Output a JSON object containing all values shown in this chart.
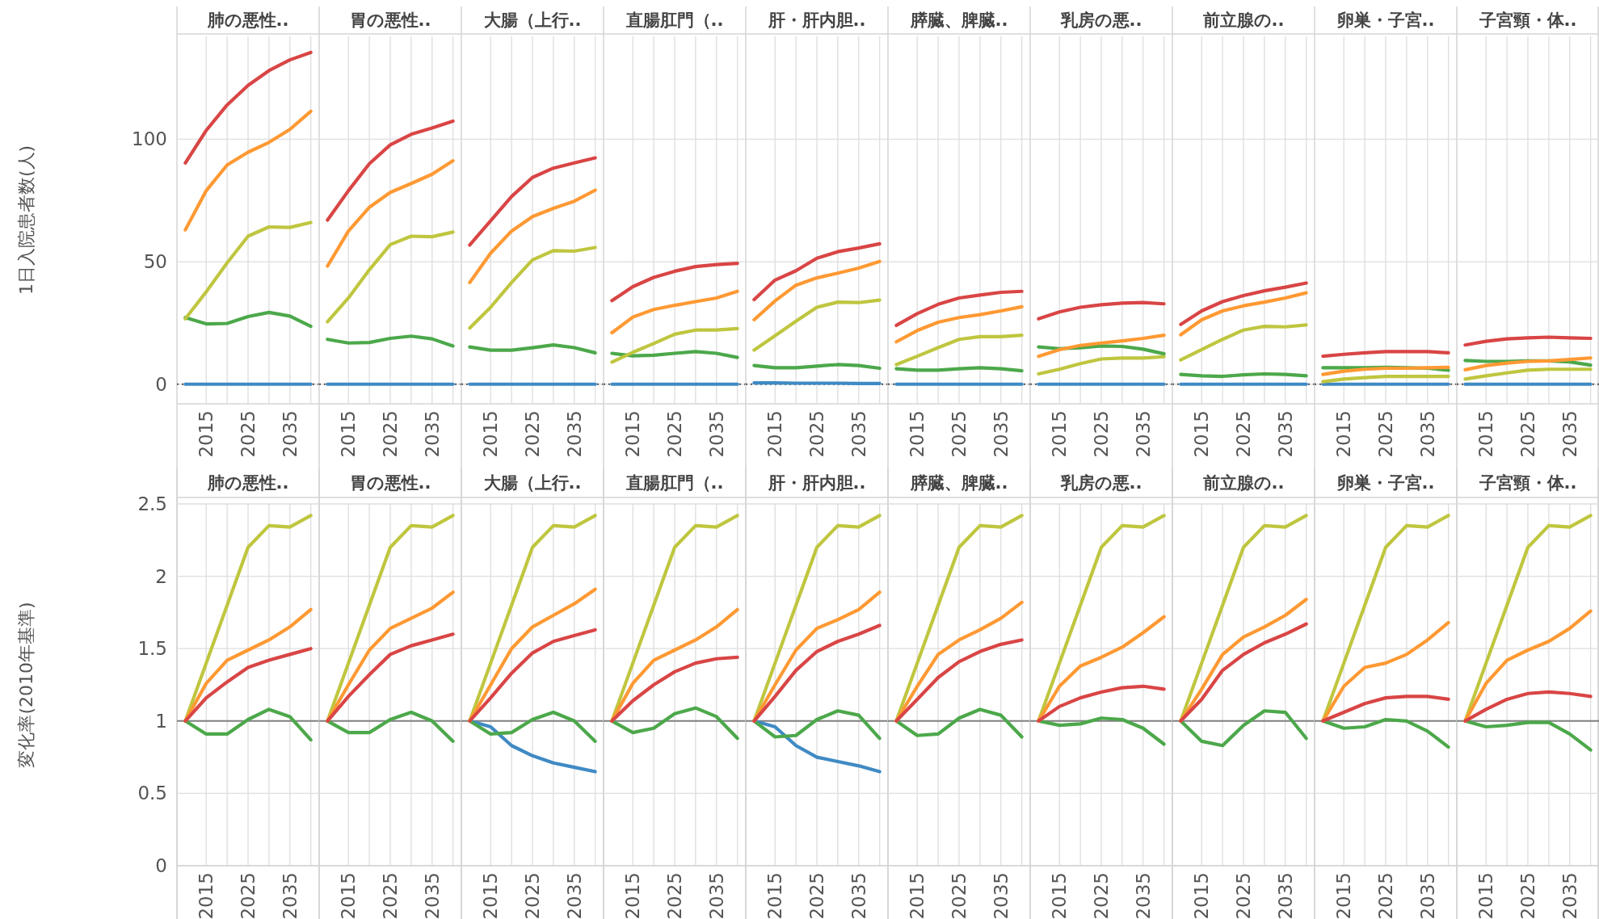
{
  "chart_data": [
    {
      "type": "line",
      "title": "肺の悪性..",
      "ylabel": "1日入院患者数(人)",
      "x": [
        2010,
        2015,
        2020,
        2025,
        2030,
        2035,
        2040
      ],
      "xlim": [
        2008,
        2042
      ],
      "xticks": [
        {
          "value": 2015,
          "label": "2015"
        },
        {
          "value": 2020,
          "label": null
        },
        {
          "value": 2025,
          "label": "2025"
        },
        {
          "value": 2030,
          "label": null
        },
        {
          "value": 2035,
          "label": "2035"
        },
        {
          "value": 2040,
          "label": null
        }
      ],
      "ylim": [
        -8,
        142
      ],
      "yticks": [
        0,
        50,
        100
      ],
      "grid": true,
      "ref_lines": [
        {
          "axis": "y",
          "value": 0,
          "color": "#555555",
          "line_style": "dotted"
        }
      ],
      "series": [
        {
          "color": "#3f8ac4",
          "values": [
            0,
            0,
            0,
            0,
            0,
            0,
            0
          ]
        },
        {
          "color": "#4ca84a",
          "values": [
            27.2,
            24.6,
            24.8,
            27.6,
            29.3,
            27.8,
            23.6
          ]
        },
        {
          "color": "#bfc63f",
          "values": [
            26.7,
            37.7,
            49.5,
            60.4,
            64.2,
            64,
            66
          ]
        },
        {
          "color": "#ff9933",
          "values": [
            63,
            79,
            89.5,
            94.7,
            98.7,
            104,
            111.4
          ]
        },
        {
          "color": "#d94545",
          "values": [
            90.3,
            103.6,
            114,
            122,
            128,
            132.4,
            135.4
          ]
        }
      ]
    },
    {
      "type": "line",
      "title": "胃の悪性..",
      "x": [
        2010,
        2015,
        2020,
        2025,
        2030,
        2035,
        2040
      ],
      "xlim": [
        2008,
        2042
      ],
      "xticks": [
        {
          "value": 2015,
          "label": "2015"
        },
        {
          "value": 2020,
          "label": null
        },
        {
          "value": 2025,
          "label": "2025"
        },
        {
          "value": 2030,
          "label": null
        },
        {
          "value": 2035,
          "label": "2035"
        },
        {
          "value": 2040,
          "label": null
        }
      ],
      "ylim": [
        -8,
        142
      ],
      "yticks": [
        0,
        50,
        100
      ],
      "tick_labels": "x",
      "grid": true,
      "ref_lines": [
        {
          "axis": "y",
          "value": 0,
          "color": "#555555",
          "line_style": "dotted"
        }
      ],
      "series": [
        {
          "color": "#3f8ac4",
          "values": [
            0,
            0,
            0,
            0,
            0,
            0,
            0
          ]
        },
        {
          "color": "#4ca84a",
          "values": [
            18.3,
            16.8,
            17,
            18.7,
            19.6,
            18.5,
            15.6
          ]
        },
        {
          "color": "#bfc63f",
          "values": [
            25.5,
            35.2,
            46.7,
            57,
            60.4,
            60.2,
            62.1
          ]
        },
        {
          "color": "#ff9933",
          "values": [
            48.2,
            62.5,
            72.2,
            78.3,
            81.9,
            85.7,
            91.2
          ]
        },
        {
          "color": "#d94545",
          "values": [
            67,
            79,
            90,
            97.7,
            102,
            104.6,
            107.4
          ]
        }
      ]
    },
    {
      "type": "line",
      "title": "大腸（上行..",
      "x": [
        2010,
        2015,
        2020,
        2025,
        2030,
        2035,
        2040
      ],
      "xlim": [
        2008,
        2042
      ],
      "xticks": [
        {
          "value": 2015,
          "label": "2015"
        },
        {
          "value": 2020,
          "label": null
        },
        {
          "value": 2025,
          "label": "2025"
        },
        {
          "value": 2030,
          "label": null
        },
        {
          "value": 2035,
          "label": "2035"
        },
        {
          "value": 2040,
          "label": null
        }
      ],
      "ylim": [
        -8,
        142
      ],
      "yticks": [
        0,
        50,
        100
      ],
      "tick_labels": "x",
      "grid": true,
      "ref_lines": [
        {
          "axis": "y",
          "value": 0,
          "color": "#555555",
          "line_style": "dotted"
        }
      ],
      "series": [
        {
          "color": "#3f8ac4",
          "values": [
            0,
            0,
            0,
            0,
            0,
            0,
            0
          ]
        },
        {
          "color": "#4ca84a",
          "values": [
            15.2,
            13.9,
            13.9,
            14.9,
            16,
            14.9,
            12.8
          ]
        },
        {
          "color": "#bfc63f",
          "values": [
            22.9,
            31.4,
            41.5,
            50.7,
            54.5,
            54.3,
            55.8
          ]
        },
        {
          "color": "#ff9933",
          "values": [
            41.5,
            53.5,
            62.5,
            68.4,
            71.8,
            74.7,
            79.2
          ]
        },
        {
          "color": "#d94545",
          "values": [
            56.8,
            66.7,
            76.6,
            84.4,
            88.2,
            90.3,
            92.4
          ]
        }
      ]
    },
    {
      "type": "line",
      "title": "直腸肛門（..",
      "x": [
        2010,
        2015,
        2020,
        2025,
        2030,
        2035,
        2040
      ],
      "xlim": [
        2008,
        2042
      ],
      "xticks": [
        {
          "value": 2015,
          "label": "2015"
        },
        {
          "value": 2020,
          "label": null
        },
        {
          "value": 2025,
          "label": "2025"
        },
        {
          "value": 2030,
          "label": null
        },
        {
          "value": 2035,
          "label": "2035"
        },
        {
          "value": 2040,
          "label": null
        }
      ],
      "ylim": [
        -8,
        142
      ],
      "yticks": [
        0,
        50,
        100
      ],
      "tick_labels": "x",
      "grid": true,
      "ref_lines": [
        {
          "axis": "y",
          "value": 0,
          "color": "#555555",
          "line_style": "dotted"
        }
      ],
      "series": [
        {
          "color": "#3f8ac4",
          "values": [
            0,
            0,
            0,
            0,
            0,
            0,
            0
          ]
        },
        {
          "color": "#4ca84a",
          "values": [
            12.6,
            11.6,
            11.8,
            12.6,
            13.3,
            12.6,
            10.9
          ]
        },
        {
          "color": "#bfc63f",
          "values": [
            9,
            13,
            16.6,
            20.4,
            22.1,
            22.1,
            22.7
          ]
        },
        {
          "color": "#ff9933",
          "values": [
            21,
            27.4,
            30.5,
            32.2,
            33.7,
            35.2,
            37.9
          ]
        },
        {
          "color": "#d94545",
          "values": [
            34.1,
            39.8,
            43.6,
            46.1,
            48,
            48.8,
            49.3
          ]
        }
      ]
    },
    {
      "type": "line",
      "title": "肝・肝内胆..",
      "x": [
        2010,
        2015,
        2020,
        2025,
        2030,
        2035,
        2040
      ],
      "xlim": [
        2008,
        2042
      ],
      "xticks": [
        {
          "value": 2015,
          "label": "2015"
        },
        {
          "value": 2020,
          "label": null
        },
        {
          "value": 2025,
          "label": "2025"
        },
        {
          "value": 2030,
          "label": null
        },
        {
          "value": 2035,
          "label": "2035"
        },
        {
          "value": 2040,
          "label": null
        }
      ],
      "ylim": [
        -8,
        142
      ],
      "yticks": [
        0,
        50,
        100
      ],
      "tick_labels": "x",
      "grid": true,
      "ref_lines": [
        {
          "axis": "y",
          "value": 0,
          "color": "#555555",
          "line_style": "dotted"
        }
      ],
      "series": [
        {
          "color": "#3f8ac4",
          "values": [
            0.5,
            0.5,
            0.4,
            0.4,
            0.4,
            0.3,
            0.3
          ]
        },
        {
          "color": "#4ca84a",
          "values": [
            7.6,
            6.7,
            6.7,
            7.4,
            8,
            7.6,
            6.5
          ]
        },
        {
          "color": "#bfc63f",
          "values": [
            13.9,
            19.8,
            25.7,
            31.4,
            33.5,
            33.3,
            34.3
          ]
        },
        {
          "color": "#ff9933",
          "values": [
            26.3,
            34,
            40.4,
            43.4,
            45.3,
            47.4,
            50.1
          ]
        },
        {
          "color": "#d94545",
          "values": [
            34.5,
            42.5,
            46.3,
            51.4,
            54.1,
            55.6,
            57.3
          ]
        }
      ]
    },
    {
      "type": "line",
      "title": "膵臓、脾臓..",
      "x": [
        2010,
        2015,
        2020,
        2025,
        2030,
        2035,
        2040
      ],
      "xlim": [
        2008,
        2042
      ],
      "xticks": [
        {
          "value": 2015,
          "label": "2015"
        },
        {
          "value": 2020,
          "label": null
        },
        {
          "value": 2025,
          "label": "2025"
        },
        {
          "value": 2030,
          "label": null
        },
        {
          "value": 2035,
          "label": "2035"
        },
        {
          "value": 2040,
          "label": null
        }
      ],
      "ylim": [
        -8,
        142
      ],
      "yticks": [
        0,
        50,
        100
      ],
      "tick_labels": "x",
      "grid": true,
      "ref_lines": [
        {
          "axis": "y",
          "value": 0,
          "color": "#555555",
          "line_style": "dotted"
        }
      ],
      "series": [
        {
          "color": "#3f8ac4",
          "values": [
            0,
            0,
            0,
            0,
            0,
            0,
            0
          ]
        },
        {
          "color": "#4ca84a",
          "values": [
            6.3,
            5.7,
            5.7,
            6.3,
            6.7,
            6.3,
            5.5
          ]
        },
        {
          "color": "#bfc63f",
          "values": [
            8,
            11.4,
            14.9,
            18.3,
            19.4,
            19.4,
            20
          ]
        },
        {
          "color": "#ff9933",
          "values": [
            17.3,
            21.9,
            25.3,
            27.2,
            28.4,
            29.9,
            31.6
          ]
        },
        {
          "color": "#d94545",
          "values": [
            24,
            28.8,
            32.6,
            35.2,
            36.4,
            37.5,
            37.9
          ]
        }
      ]
    },
    {
      "type": "line",
      "title": "乳房の悪..",
      "x": [
        2010,
        2015,
        2020,
        2025,
        2030,
        2035,
        2040
      ],
      "xlim": [
        2008,
        2042
      ],
      "xticks": [
        {
          "value": 2015,
          "label": "2015"
        },
        {
          "value": 2020,
          "label": null
        },
        {
          "value": 2025,
          "label": "2025"
        },
        {
          "value": 2030,
          "label": null
        },
        {
          "value": 2035,
          "label": "2035"
        },
        {
          "value": 2040,
          "label": null
        }
      ],
      "ylim": [
        -8,
        142
      ],
      "yticks": [
        0,
        50,
        100
      ],
      "tick_labels": "x",
      "grid": true,
      "ref_lines": [
        {
          "axis": "y",
          "value": 0,
          "color": "#555555",
          "line_style": "dotted"
        }
      ],
      "series": [
        {
          "color": "#3f8ac4",
          "values": [
            0,
            0,
            0,
            0,
            0,
            0,
            0
          ]
        },
        {
          "color": "#4ca84a",
          "values": [
            15.2,
            14.5,
            14.9,
            15.6,
            15.4,
            14.3,
            12.4
          ]
        },
        {
          "color": "#bfc63f",
          "values": [
            4.2,
            6.1,
            8.4,
            10.3,
            10.7,
            10.7,
            11.2
          ]
        },
        {
          "color": "#ff9933",
          "values": [
            11.4,
            14.1,
            15.8,
            16.8,
            17.7,
            18.7,
            20
          ]
        },
        {
          "color": "#d94545",
          "values": [
            26.7,
            29.5,
            31.4,
            32.4,
            33.1,
            33.3,
            32.8
          ]
        }
      ]
    },
    {
      "type": "line",
      "title": "前立腺の..",
      "x": [
        2010,
        2015,
        2020,
        2025,
        2030,
        2035,
        2040
      ],
      "xlim": [
        2008,
        2042
      ],
      "xticks": [
        {
          "value": 2015,
          "label": "2015"
        },
        {
          "value": 2020,
          "label": null
        },
        {
          "value": 2025,
          "label": "2025"
        },
        {
          "value": 2030,
          "label": null
        },
        {
          "value": 2035,
          "label": "2035"
        },
        {
          "value": 2040,
          "label": null
        }
      ],
      "ylim": [
        -8,
        142
      ],
      "yticks": [
        0,
        50,
        100
      ],
      "tick_labels": "x",
      "grid": true,
      "ref_lines": [
        {
          "axis": "y",
          "value": 0,
          "color": "#555555",
          "line_style": "dotted"
        }
      ],
      "series": [
        {
          "color": "#3f8ac4",
          "values": [
            0,
            0,
            0,
            0,
            0,
            0,
            0
          ]
        },
        {
          "color": "#4ca84a",
          "values": [
            4,
            3.4,
            3.2,
            3.8,
            4.2,
            4,
            3.4
          ]
        },
        {
          "color": "#bfc63f",
          "values": [
            9.9,
            14.1,
            18.3,
            22.1,
            23.6,
            23.4,
            24.2
          ]
        },
        {
          "color": "#ff9933",
          "values": [
            20.2,
            26.3,
            29.9,
            32,
            33.5,
            35.2,
            37.3
          ]
        },
        {
          "color": "#d94545",
          "values": [
            24.4,
            29.9,
            33.7,
            36.2,
            38.1,
            39.6,
            41.3
          ]
        }
      ]
    },
    {
      "type": "line",
      "title": "卵巣・子宮..",
      "x": [
        2010,
        2015,
        2020,
        2025,
        2030,
        2035,
        2040
      ],
      "xlim": [
        2008,
        2042
      ],
      "xticks": [
        {
          "value": 2015,
          "label": "2015"
        },
        {
          "value": 2020,
          "label": null
        },
        {
          "value": 2025,
          "label": "2025"
        },
        {
          "value": 2030,
          "label": null
        },
        {
          "value": 2035,
          "label": "2035"
        },
        {
          "value": 2040,
          "label": null
        }
      ],
      "ylim": [
        -8,
        142
      ],
      "yticks": [
        0,
        50,
        100
      ],
      "tick_labels": "x",
      "grid": true,
      "ref_lines": [
        {
          "axis": "y",
          "value": 0,
          "color": "#555555",
          "line_style": "dotted"
        }
      ],
      "series": [
        {
          "color": "#3f8ac4",
          "values": [
            0,
            0,
            0,
            0,
            0,
            0,
            0
          ]
        },
        {
          "color": "#4ca84a",
          "values": [
            6.7,
            6.7,
            6.7,
            6.9,
            6.7,
            6.5,
            5.7
          ]
        },
        {
          "color": "#bfc63f",
          "values": [
            1,
            2.1,
            2.7,
            3.2,
            3.2,
            3.2,
            3.2
          ]
        },
        {
          "color": "#ff9933",
          "values": [
            4,
            5.3,
            6.1,
            6.5,
            6.5,
            6.7,
            6.9
          ]
        },
        {
          "color": "#d94545",
          "values": [
            11.4,
            12.2,
            12.8,
            13.3,
            13.3,
            13.3,
            12.8
          ]
        }
      ]
    },
    {
      "type": "line",
      "title": "子宮頸・体..",
      "x": [
        2010,
        2015,
        2020,
        2025,
        2030,
        2035,
        2040
      ],
      "xlim": [
        2008,
        2042
      ],
      "xticks": [
        {
          "value": 2015,
          "label": "2015"
        },
        {
          "value": 2020,
          "label": null
        },
        {
          "value": 2025,
          "label": "2025"
        },
        {
          "value": 2030,
          "label": null
        },
        {
          "value": 2035,
          "label": "2035"
        },
        {
          "value": 2040,
          "label": null
        }
      ],
      "ylim": [
        -8,
        142
      ],
      "yticks": [
        0,
        50,
        100
      ],
      "tick_labels": "x",
      "grid": true,
      "ref_lines": [
        {
          "axis": "y",
          "value": 0,
          "color": "#555555",
          "line_style": "dotted"
        }
      ],
      "series": [
        {
          "color": "#3f8ac4",
          "values": [
            0,
            0,
            0,
            0,
            0,
            0,
            0
          ]
        },
        {
          "color": "#4ca84a",
          "values": [
            9.7,
            9.3,
            9.3,
            9.5,
            9.5,
            9.1,
            7.8
          ]
        },
        {
          "color": "#bfc63f",
          "values": [
            2.1,
            3.4,
            4.6,
            5.7,
            6.1,
            6.1,
            6.1
          ]
        },
        {
          "color": "#ff9933",
          "values": [
            5.9,
            7.6,
            8.6,
            9.3,
            9.5,
            10.1,
            10.7
          ]
        },
        {
          "color": "#d94545",
          "values": [
            16,
            17.5,
            18.5,
            18.9,
            19.2,
            18.9,
            18.7
          ]
        }
      ]
    },
    {
      "type": "line",
      "title": "肺の悪性..",
      "ylabel": "変化率(2010年基準)",
      "x": [
        2010,
        2015,
        2020,
        2025,
        2030,
        2035,
        2040
      ],
      "xlim": [
        2008,
        2042
      ],
      "xticks": [
        {
          "value": 2015,
          "label": "2015"
        },
        {
          "value": 2020,
          "label": null
        },
        {
          "value": 2025,
          "label": "2025"
        },
        {
          "value": 2030,
          "label": null
        },
        {
          "value": 2035,
          "label": "2035"
        },
        {
          "value": 2040,
          "label": null
        }
      ],
      "ylim": [
        0,
        2.5
      ],
      "yticks": [
        0,
        0.5,
        1,
        1.5,
        2,
        2.5
      ],
      "grid": true,
      "ref_lines": [
        {
          "axis": "y",
          "value": 1,
          "color": "#808080",
          "line_style": "solid"
        }
      ],
      "series": [
        {
          "color": "#4ca84a",
          "values": [
            1,
            0.91,
            0.91,
            1.01,
            1.08,
            1.03,
            0.87
          ]
        },
        {
          "color": "#bfc63f",
          "values": [
            1,
            1.4,
            1.8,
            2.2,
            2.35,
            2.34,
            2.42
          ]
        },
        {
          "color": "#ff9933",
          "values": [
            1,
            1.26,
            1.42,
            1.49,
            1.56,
            1.65,
            1.77
          ]
        },
        {
          "color": "#d94545",
          "values": [
            1,
            1.16,
            1.27,
            1.37,
            1.42,
            1.46,
            1.5
          ]
        }
      ]
    },
    {
      "type": "line",
      "title": "胃の悪性..",
      "x": [
        2010,
        2015,
        2020,
        2025,
        2030,
        2035,
        2040
      ],
      "xlim": [
        2008,
        2042
      ],
      "xticks": [
        {
          "value": 2015,
          "label": "2015"
        },
        {
          "value": 2020,
          "label": null
        },
        {
          "value": 2025,
          "label": "2025"
        },
        {
          "value": 2030,
          "label": null
        },
        {
          "value": 2035,
          "label": "2035"
        },
        {
          "value": 2040,
          "label": null
        }
      ],
      "ylim": [
        0,
        2.5
      ],
      "yticks": [
        0,
        0.5,
        1,
        1.5,
        2,
        2.5
      ],
      "tick_labels": "x",
      "grid": true,
      "ref_lines": [
        {
          "axis": "y",
          "value": 1,
          "color": "#808080",
          "line_style": "solid"
        }
      ],
      "series": [
        {
          "color": "#4ca84a",
          "values": [
            1,
            0.92,
            0.92,
            1.01,
            1.06,
            1.0,
            0.86
          ]
        },
        {
          "color": "#bfc63f",
          "values": [
            1,
            1.4,
            1.8,
            2.2,
            2.35,
            2.34,
            2.42
          ]
        },
        {
          "color": "#ff9933",
          "values": [
            1,
            1.25,
            1.49,
            1.64,
            1.71,
            1.78,
            1.89
          ]
        },
        {
          "color": "#d94545",
          "values": [
            1,
            1.17,
            1.32,
            1.46,
            1.52,
            1.56,
            1.6
          ]
        }
      ]
    },
    {
      "type": "line",
      "title": "大腸（上行..",
      "x": [
        2010,
        2015,
        2020,
        2025,
        2030,
        2035,
        2040
      ],
      "xlim": [
        2008,
        2042
      ],
      "xticks": [
        {
          "value": 2015,
          "label": "2015"
        },
        {
          "value": 2020,
          "label": null
        },
        {
          "value": 2025,
          "label": "2025"
        },
        {
          "value": 2030,
          "label": null
        },
        {
          "value": 2035,
          "label": "2035"
        },
        {
          "value": 2040,
          "label": null
        }
      ],
      "ylim": [
        0,
        2.5
      ],
      "yticks": [
        0,
        0.5,
        1,
        1.5,
        2,
        2.5
      ],
      "tick_labels": "x",
      "grid": true,
      "ref_lines": [
        {
          "axis": "y",
          "value": 1,
          "color": "#808080",
          "line_style": "solid"
        }
      ],
      "series": [
        {
          "color": "#3f8ac4",
          "values": [
            1,
            0.96,
            0.83,
            0.76,
            0.71,
            0.68,
            0.65
          ]
        },
        {
          "color": "#4ca84a",
          "values": [
            1,
            0.91,
            0.92,
            1.01,
            1.06,
            1.0,
            0.86
          ]
        },
        {
          "color": "#bfc63f",
          "values": [
            1,
            1.4,
            1.8,
            2.2,
            2.35,
            2.34,
            2.42
          ]
        },
        {
          "color": "#ff9933",
          "values": [
            1,
            1.25,
            1.5,
            1.65,
            1.73,
            1.81,
            1.91
          ]
        },
        {
          "color": "#d94545",
          "values": [
            1,
            1.16,
            1.33,
            1.47,
            1.55,
            1.59,
            1.63
          ]
        }
      ]
    },
    {
      "type": "line",
      "title": "直腸肛門（..",
      "x": [
        2010,
        2015,
        2020,
        2025,
        2030,
        2035,
        2040
      ],
      "xlim": [
        2008,
        2042
      ],
      "xticks": [
        {
          "value": 2015,
          "label": "2015"
        },
        {
          "value": 2020,
          "label": null
        },
        {
          "value": 2025,
          "label": "2025"
        },
        {
          "value": 2030,
          "label": null
        },
        {
          "value": 2035,
          "label": "2035"
        },
        {
          "value": 2040,
          "label": null
        }
      ],
      "ylim": [
        0,
        2.5
      ],
      "yticks": [
        0,
        0.5,
        1,
        1.5,
        2,
        2.5
      ],
      "tick_labels": "x",
      "grid": true,
      "ref_lines": [
        {
          "axis": "y",
          "value": 1,
          "color": "#808080",
          "line_style": "solid"
        }
      ],
      "series": [
        {
          "color": "#4ca84a",
          "values": [
            1,
            0.92,
            0.95,
            1.05,
            1.09,
            1.03,
            0.88
          ]
        },
        {
          "color": "#bfc63f",
          "values": [
            1,
            1.4,
            1.8,
            2.2,
            2.35,
            2.34,
            2.42
          ]
        },
        {
          "color": "#ff9933",
          "values": [
            1,
            1.26,
            1.42,
            1.49,
            1.56,
            1.65,
            1.77
          ]
        },
        {
          "color": "#d94545",
          "values": [
            1,
            1.14,
            1.25,
            1.34,
            1.4,
            1.43,
            1.44
          ]
        }
      ]
    },
    {
      "type": "line",
      "title": "肝・肝内胆..",
      "x": [
        2010,
        2015,
        2020,
        2025,
        2030,
        2035,
        2040
      ],
      "xlim": [
        2008,
        2042
      ],
      "xticks": [
        {
          "value": 2015,
          "label": "2015"
        },
        {
          "value": 2020,
          "label": null
        },
        {
          "value": 2025,
          "label": "2025"
        },
        {
          "value": 2030,
          "label": null
        },
        {
          "value": 2035,
          "label": "2035"
        },
        {
          "value": 2040,
          "label": null
        }
      ],
      "ylim": [
        0,
        2.5
      ],
      "yticks": [
        0,
        0.5,
        1,
        1.5,
        2,
        2.5
      ],
      "tick_labels": "x",
      "grid": true,
      "ref_lines": [
        {
          "axis": "y",
          "value": 1,
          "color": "#808080",
          "line_style": "solid"
        }
      ],
      "series": [
        {
          "color": "#3f8ac4",
          "values": [
            1,
            0.96,
            0.83,
            0.75,
            0.72,
            0.69,
            0.65
          ]
        },
        {
          "color": "#4ca84a",
          "values": [
            1,
            0.89,
            0.9,
            1.01,
            1.07,
            1.04,
            0.88
          ]
        },
        {
          "color": "#bfc63f",
          "values": [
            1,
            1.4,
            1.8,
            2.2,
            2.35,
            2.34,
            2.42
          ]
        },
        {
          "color": "#ff9933",
          "values": [
            1,
            1.25,
            1.49,
            1.64,
            1.7,
            1.77,
            1.89
          ]
        },
        {
          "color": "#d94545",
          "values": [
            1,
            1.17,
            1.35,
            1.48,
            1.55,
            1.6,
            1.66
          ]
        }
      ]
    },
    {
      "type": "line",
      "title": "膵臓、脾臓..",
      "x": [
        2010,
        2015,
        2020,
        2025,
        2030,
        2035,
        2040
      ],
      "xlim": [
        2008,
        2042
      ],
      "xticks": [
        {
          "value": 2015,
          "label": "2015"
        },
        {
          "value": 2020,
          "label": null
        },
        {
          "value": 2025,
          "label": "2025"
        },
        {
          "value": 2030,
          "label": null
        },
        {
          "value": 2035,
          "label": "2035"
        },
        {
          "value": 2040,
          "label": null
        }
      ],
      "ylim": [
        0,
        2.5
      ],
      "yticks": [
        0,
        0.5,
        1,
        1.5,
        2,
        2.5
      ],
      "tick_labels": "x",
      "grid": true,
      "ref_lines": [
        {
          "axis": "y",
          "value": 1,
          "color": "#808080",
          "line_style": "solid"
        }
      ],
      "series": [
        {
          "color": "#4ca84a",
          "values": [
            1,
            0.9,
            0.91,
            1.02,
            1.08,
            1.04,
            0.89
          ]
        },
        {
          "color": "#bfc63f",
          "values": [
            1,
            1.4,
            1.8,
            2.2,
            2.35,
            2.34,
            2.42
          ]
        },
        {
          "color": "#ff9933",
          "values": [
            1,
            1.24,
            1.46,
            1.56,
            1.63,
            1.71,
            1.82
          ]
        },
        {
          "color": "#d94545",
          "values": [
            1,
            1.15,
            1.3,
            1.41,
            1.48,
            1.53,
            1.56
          ]
        }
      ]
    },
    {
      "type": "line",
      "title": "乳房の悪..",
      "x": [
        2010,
        2015,
        2020,
        2025,
        2030,
        2035,
        2040
      ],
      "xlim": [
        2008,
        2042
      ],
      "xticks": [
        {
          "value": 2015,
          "label": "2015"
        },
        {
          "value": 2020,
          "label": null
        },
        {
          "value": 2025,
          "label": "2025"
        },
        {
          "value": 2030,
          "label": null
        },
        {
          "value": 2035,
          "label": "2035"
        },
        {
          "value": 2040,
          "label": null
        }
      ],
      "ylim": [
        0,
        2.5
      ],
      "yticks": [
        0,
        0.5,
        1,
        1.5,
        2,
        2.5
      ],
      "tick_labels": "x",
      "grid": true,
      "ref_lines": [
        {
          "axis": "y",
          "value": 1,
          "color": "#808080",
          "line_style": "solid"
        }
      ],
      "series": [
        {
          "color": "#4ca84a",
          "values": [
            1,
            0.97,
            0.98,
            1.02,
            1.01,
            0.95,
            0.84
          ]
        },
        {
          "color": "#bfc63f",
          "values": [
            1,
            1.4,
            1.8,
            2.2,
            2.35,
            2.34,
            2.42
          ]
        },
        {
          "color": "#ff9933",
          "values": [
            1,
            1.24,
            1.38,
            1.44,
            1.51,
            1.61,
            1.72
          ]
        },
        {
          "color": "#d94545",
          "values": [
            1,
            1.1,
            1.16,
            1.2,
            1.23,
            1.24,
            1.22
          ]
        }
      ]
    },
    {
      "type": "line",
      "title": "前立腺の..",
      "x": [
        2010,
        2015,
        2020,
        2025,
        2030,
        2035,
        2040
      ],
      "xlim": [
        2008,
        2042
      ],
      "xticks": [
        {
          "value": 2015,
          "label": "2015"
        },
        {
          "value": 2020,
          "label": null
        },
        {
          "value": 2025,
          "label": "2025"
        },
        {
          "value": 2030,
          "label": null
        },
        {
          "value": 2035,
          "label": "2035"
        },
        {
          "value": 2040,
          "label": null
        }
      ],
      "ylim": [
        0,
        2.5
      ],
      "yticks": [
        0,
        0.5,
        1,
        1.5,
        2,
        2.5
      ],
      "tick_labels": "x",
      "grid": true,
      "ref_lines": [
        {
          "axis": "y",
          "value": 1,
          "color": "#808080",
          "line_style": "solid"
        }
      ],
      "series": [
        {
          "color": "#4ca84a",
          "values": [
            1,
            0.86,
            0.83,
            0.97,
            1.07,
            1.06,
            0.88
          ]
        },
        {
          "color": "#bfc63f",
          "values": [
            1,
            1.4,
            1.8,
            2.2,
            2.35,
            2.34,
            2.42
          ]
        },
        {
          "color": "#ff9933",
          "values": [
            1,
            1.22,
            1.46,
            1.58,
            1.65,
            1.73,
            1.84
          ]
        },
        {
          "color": "#d94545",
          "values": [
            1,
            1.15,
            1.35,
            1.46,
            1.54,
            1.6,
            1.67
          ]
        }
      ]
    },
    {
      "type": "line",
      "title": "卵巣・子宮..",
      "x": [
        2010,
        2015,
        2020,
        2025,
        2030,
        2035,
        2040
      ],
      "xlim": [
        2008,
        2042
      ],
      "xticks": [
        {
          "value": 2015,
          "label": "2015"
        },
        {
          "value": 2020,
          "label": null
        },
        {
          "value": 2025,
          "label": "2025"
        },
        {
          "value": 2030,
          "label": null
        },
        {
          "value": 2035,
          "label": "2035"
        },
        {
          "value": 2040,
          "label": null
        }
      ],
      "ylim": [
        0,
        2.5
      ],
      "yticks": [
        0,
        0.5,
        1,
        1.5,
        2,
        2.5
      ],
      "tick_labels": "x",
      "grid": true,
      "ref_lines": [
        {
          "axis": "y",
          "value": 1,
          "color": "#808080",
          "line_style": "solid"
        }
      ],
      "series": [
        {
          "color": "#4ca84a",
          "values": [
            1,
            0.95,
            0.96,
            1.01,
            1.0,
            0.93,
            0.82
          ]
        },
        {
          "color": "#bfc63f",
          "values": [
            1,
            1.4,
            1.8,
            2.2,
            2.35,
            2.34,
            2.42
          ]
        },
        {
          "color": "#ff9933",
          "values": [
            1,
            1.24,
            1.37,
            1.4,
            1.46,
            1.56,
            1.68
          ]
        },
        {
          "color": "#d94545",
          "values": [
            1,
            1.06,
            1.12,
            1.16,
            1.17,
            1.17,
            1.15
          ]
        }
      ]
    },
    {
      "type": "line",
      "title": "子宮頸・体..",
      "x": [
        2010,
        2015,
        2020,
        2025,
        2030,
        2035,
        2040
      ],
      "xlim": [
        2008,
        2042
      ],
      "xticks": [
        {
          "value": 2015,
          "label": "2015"
        },
        {
          "value": 2020,
          "label": null
        },
        {
          "value": 2025,
          "label": "2025"
        },
        {
          "value": 2030,
          "label": null
        },
        {
          "value": 2035,
          "label": "2035"
        },
        {
          "value": 2040,
          "label": null
        }
      ],
      "ylim": [
        0,
        2.5
      ],
      "yticks": [
        0,
        0.5,
        1,
        1.5,
        2,
        2.5
      ],
      "tick_labels": "x",
      "grid": true,
      "ref_lines": [
        {
          "axis": "y",
          "value": 1,
          "color": "#808080",
          "line_style": "solid"
        }
      ],
      "series": [
        {
          "color": "#4ca84a",
          "values": [
            1,
            0.96,
            0.97,
            0.99,
            0.99,
            0.91,
            0.8
          ]
        },
        {
          "color": "#bfc63f",
          "values": [
            1,
            1.4,
            1.8,
            2.2,
            2.35,
            2.34,
            2.42
          ]
        },
        {
          "color": "#ff9933",
          "values": [
            1,
            1.26,
            1.42,
            1.49,
            1.55,
            1.64,
            1.76
          ]
        },
        {
          "color": "#d94545",
          "values": [
            1,
            1.08,
            1.15,
            1.19,
            1.2,
            1.19,
            1.17
          ]
        }
      ]
    }
  ]
}
